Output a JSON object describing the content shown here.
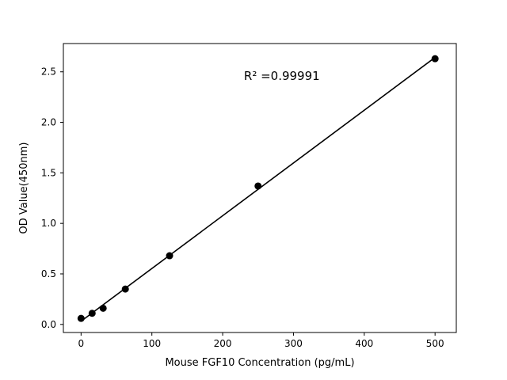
{
  "chart_data": {
    "type": "scatter",
    "x": [
      0,
      15.6,
      31.2,
      62.5,
      125,
      250,
      500
    ],
    "y": [
      0.06,
      0.11,
      0.16,
      0.35,
      0.68,
      1.37,
      2.63
    ],
    "title": "",
    "xlabel": "Mouse FGF10 Concentration (pg/mL)",
    "ylabel": "OD Value(450nm)",
    "annotation": "R² =0.99991",
    "annotation_xy": [
      230,
      2.42
    ],
    "xlim": [
      -25,
      530
    ],
    "ylim": [
      -0.08,
      2.78
    ],
    "xticks": [
      0,
      100,
      200,
      300,
      400,
      500
    ],
    "yticks": [
      0.0,
      0.5,
      1.0,
      1.5,
      2.0,
      2.5
    ],
    "grid": false,
    "legend_position": "none",
    "marker_color": "#000000",
    "line_color": "#000000",
    "background_color": "#ffffff"
  }
}
